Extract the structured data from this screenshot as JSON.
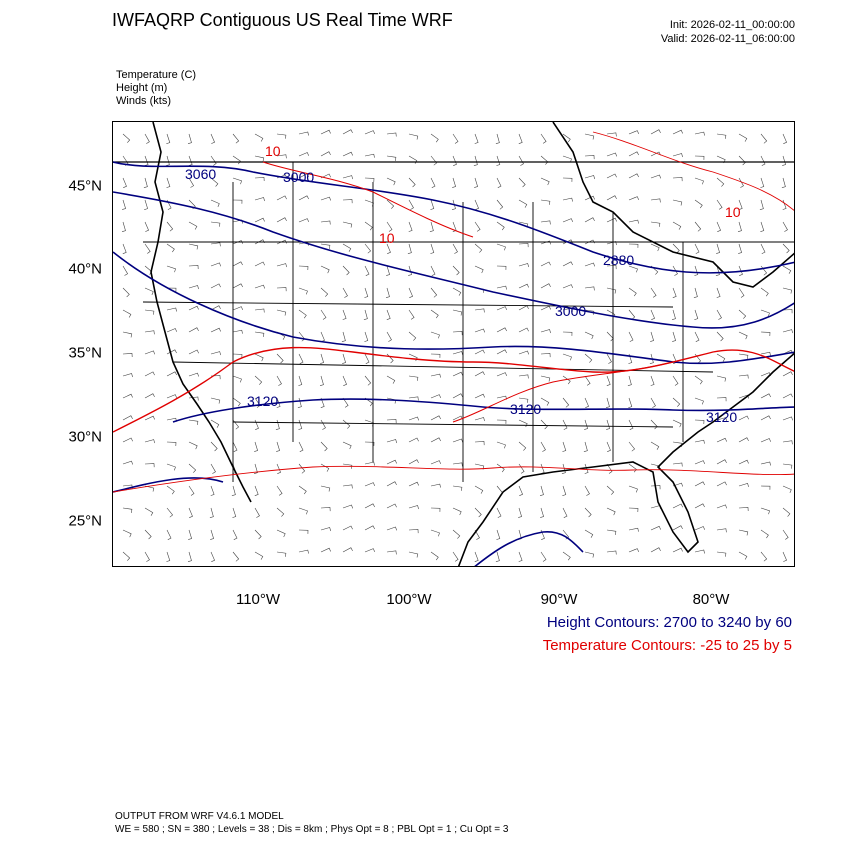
{
  "header": {
    "title": "IWFAQRP Contiguous US Real Time WRF",
    "init": "Init: 2026-02-11_00:00:00",
    "valid": "Valid: 2026-02-11_06:00:00"
  },
  "fields": [
    "Temperature   (C)",
    "Height   (m)",
    "Winds   (kts)"
  ],
  "lat_labels": [
    "45°N",
    "40°N",
    "35°N",
    "30°N",
    "25°N"
  ],
  "lon_labels": [
    "110°W",
    "100°W",
    "90°W",
    "80°W"
  ],
  "contour_labels": {
    "height": [
      "3060",
      "3000",
      "2880",
      "3000",
      "3120",
      "3120",
      "3120"
    ],
    "temp": [
      "10",
      "10",
      "10"
    ]
  },
  "legend": {
    "height": "Height Contours: 2700 to 3240 by 60",
    "temp": "Temperature Contours: -25 to 25 by 5"
  },
  "colors": {
    "height": "#00007f",
    "temp": "#e00000",
    "coast": "#000000"
  },
  "footer": {
    "line1": "OUTPUT FROM WRF V4.6.1 MODEL",
    "line2": "WE = 580 ; SN = 380 ; Levels = 38 ; Dis = 8km ; Phys Opt = 8 ; PBL Opt = 1 ; Cu Opt = 3"
  }
}
